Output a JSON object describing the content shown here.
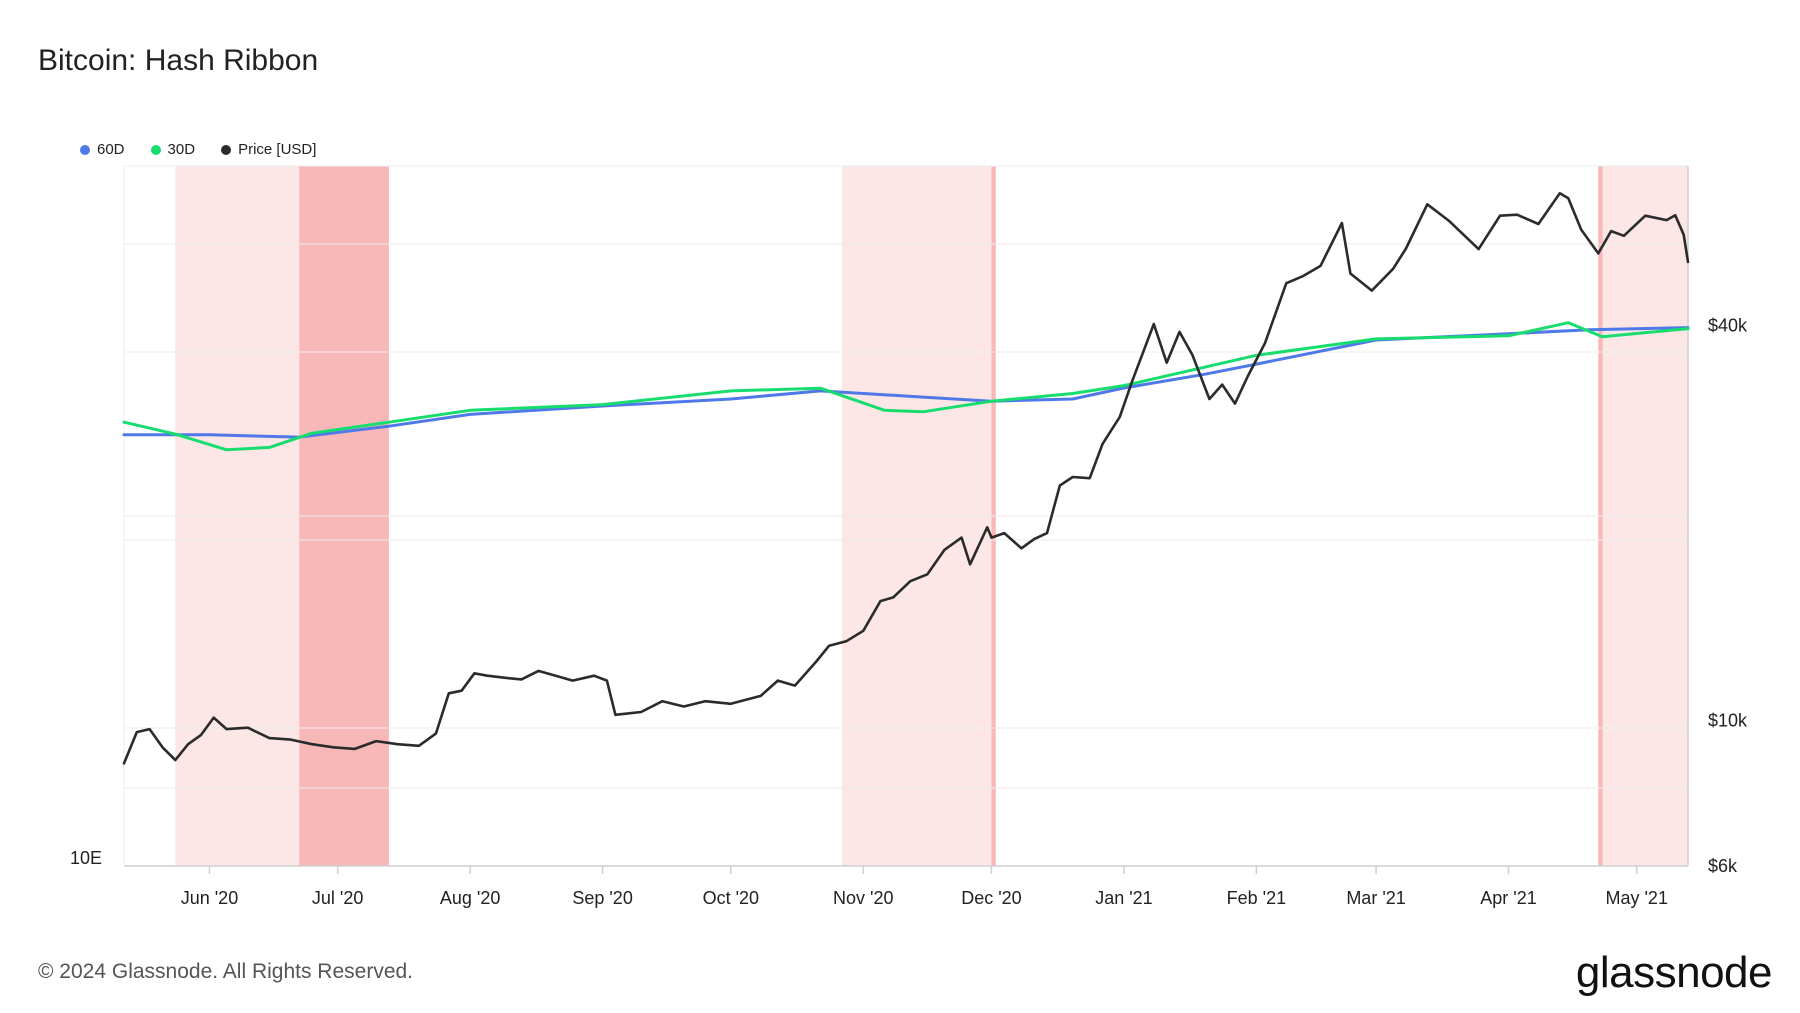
{
  "title": "Bitcoin: Hash Ribbon",
  "footer": "© 2024 Glassnode. All Rights Reserved.",
  "brand": "glassnode",
  "colors": {
    "ma60": "#4f79e8",
    "ma30": "#17dd6f",
    "price": "#2b2b2b",
    "band_light": "#fde6e6",
    "band_dark": "#f8b8b8"
  },
  "chart_data": {
    "type": "line",
    "title": "Bitcoin: Hash Ribbon",
    "x_range": [
      "2020-05-12",
      "2021-05-13"
    ],
    "legend_position": "top-left",
    "legend": [
      {
        "name": "60D",
        "color": "#4f79e8"
      },
      {
        "name": "30D",
        "color": "#17dd6f"
      },
      {
        "name": "Price [USD]",
        "color": "#2b2b2b"
      }
    ],
    "x_ticks": [
      {
        "label": "Jun '20",
        "date": "2020-06-01"
      },
      {
        "label": "Jul '20",
        "date": "2020-07-01"
      },
      {
        "label": "Aug '20",
        "date": "2020-08-01"
      },
      {
        "label": "Sep '20",
        "date": "2020-09-01"
      },
      {
        "label": "Oct '20",
        "date": "2020-10-01"
      },
      {
        "label": "Nov '20",
        "date": "2020-11-01"
      },
      {
        "label": "Dec '20",
        "date": "2020-12-01"
      },
      {
        "label": "Jan '21",
        "date": "2021-01-01"
      },
      {
        "label": "Feb '21",
        "date": "2021-02-01"
      },
      {
        "label": "Mar '21",
        "date": "2021-03-01"
      },
      {
        "label": "Apr '21",
        "date": "2021-04-01"
      },
      {
        "label": "May '21",
        "date": "2021-05-01"
      }
    ],
    "y_left": {
      "label": "",
      "scale": "log",
      "tick_labels": [
        "10E"
      ],
      "range": [
        1e+19,
        2.3e+20
      ]
    },
    "y_right": {
      "label": "",
      "scale": "log",
      "range": [
        6000,
        70000
      ],
      "ticks": [
        {
          "label": "$40k",
          "value": 40000
        },
        {
          "label": "$10k",
          "value": 10000
        },
        {
          "label": "$6k",
          "value": 6000
        }
      ]
    },
    "capitulation_bands": [
      {
        "start": "2020-05-24",
        "end": "2020-06-22",
        "shade": "light"
      },
      {
        "start": "2020-06-22",
        "end": "2020-07-13",
        "shade": "dark"
      },
      {
        "start": "2020-10-27",
        "end": "2020-12-02",
        "shade": "light"
      },
      {
        "start": "2020-12-01",
        "end": "2020-12-02",
        "shade": "dark"
      },
      {
        "start": "2021-04-22",
        "end": "2021-05-13",
        "shade": "light"
      },
      {
        "start": "2021-04-22",
        "end": "2021-04-23",
        "shade": "dark"
      }
    ],
    "series": [
      {
        "name": "60D",
        "axis": "left",
        "x": [
          "2020-05-12",
          "2020-06-01",
          "2020-06-22",
          "2020-07-13",
          "2020-08-01",
          "2020-09-01",
          "2020-10-01",
          "2020-10-22",
          "2020-11-15",
          "2020-12-01",
          "2020-12-20",
          "2021-01-01",
          "2021-01-20",
          "2021-02-01",
          "2021-03-01",
          "2021-04-01",
          "2021-04-20",
          "2021-05-13"
        ],
        "values": [
          6.9e+19,
          6.9e+19,
          6.83e+19,
          7.17e+19,
          7.56e+19,
          7.85e+19,
          8.1e+19,
          8.4e+19,
          8.17e+19,
          8.02e+19,
          8.1e+19,
          8.51e+19,
          9.05e+19,
          9.47e+19,
          1.055e+20,
          1.085e+20,
          1.105e+20,
          1.115e+20
        ]
      },
      {
        "name": "30D",
        "axis": "left",
        "x": [
          "2020-05-12",
          "2020-05-24",
          "2020-06-05",
          "2020-06-15",
          "2020-06-25",
          "2020-07-13",
          "2020-08-01",
          "2020-09-01",
          "2020-10-01",
          "2020-10-22",
          "2020-11-06",
          "2020-11-15",
          "2020-12-01",
          "2020-12-20",
          "2021-01-01",
          "2021-02-01",
          "2021-03-01",
          "2021-04-01",
          "2021-04-15",
          "2021-04-23",
          "2021-05-13"
        ],
        "values": [
          7.3e+19,
          6.92e+19,
          6.45e+19,
          6.52e+19,
          6.95e+19,
          7.3e+19,
          7.7e+19,
          7.9e+19,
          8.4e+19,
          8.5e+19,
          7.7e+19,
          7.65e+19,
          8.02e+19,
          8.3e+19,
          8.6e+19,
          9.85e+19,
          1.06e+20,
          1.075e+20,
          1.14e+20,
          1.07e+20,
          1.11e+20
        ]
      },
      {
        "name": "Price [USD]",
        "axis": "right",
        "x": [
          "2020-05-12",
          "2020-05-15",
          "2020-05-18",
          "2020-05-21",
          "2020-05-24",
          "2020-05-27",
          "2020-05-30",
          "2020-06-02",
          "2020-06-05",
          "2020-06-10",
          "2020-06-15",
          "2020-06-20",
          "2020-06-25",
          "2020-06-30",
          "2020-07-05",
          "2020-07-10",
          "2020-07-15",
          "2020-07-20",
          "2020-07-24",
          "2020-07-27",
          "2020-07-30",
          "2020-08-02",
          "2020-08-05",
          "2020-08-10",
          "2020-08-13",
          "2020-08-17",
          "2020-08-20",
          "2020-08-25",
          "2020-08-30",
          "2020-09-02",
          "2020-09-04",
          "2020-09-10",
          "2020-09-15",
          "2020-09-20",
          "2020-09-25",
          "2020-10-01",
          "2020-10-08",
          "2020-10-12",
          "2020-10-16",
          "2020-10-21",
          "2020-10-24",
          "2020-10-28",
          "2020-11-01",
          "2020-11-05",
          "2020-11-08",
          "2020-11-12",
          "2020-11-16",
          "2020-11-20",
          "2020-11-24",
          "2020-11-26",
          "2020-11-30",
          "2020-12-01",
          "2020-12-04",
          "2020-12-08",
          "2020-12-11",
          "2020-12-14",
          "2020-12-17",
          "2020-12-20",
          "2020-12-24",
          "2020-12-27",
          "2020-12-31",
          "2021-01-03",
          "2021-01-08",
          "2021-01-11",
          "2021-01-14",
          "2021-01-17",
          "2021-01-21",
          "2021-01-24",
          "2021-01-27",
          "2021-01-30",
          "2021-02-03",
          "2021-02-08",
          "2021-02-12",
          "2021-02-16",
          "2021-02-21",
          "2021-02-23",
          "2021-02-28",
          "2021-03-05",
          "2021-03-08",
          "2021-03-13",
          "2021-03-18",
          "2021-03-25",
          "2021-03-30",
          "2021-04-03",
          "2021-04-08",
          "2021-04-13",
          "2021-04-15",
          "2021-04-18",
          "2021-04-22",
          "2021-04-25",
          "2021-04-28",
          "2021-05-03",
          "2021-05-08",
          "2021-05-10",
          "2021-05-12",
          "2021-05-13"
        ],
        "values": [
          8600,
          9600,
          9700,
          9100,
          8700,
          9200,
          9500,
          10100,
          9700,
          9750,
          9400,
          9350,
          9200,
          9100,
          9050,
          9300,
          9200,
          9150,
          9550,
          11000,
          11100,
          11800,
          11700,
          11600,
          11550,
          11900,
          11750,
          11500,
          11700,
          11500,
          10200,
          10300,
          10700,
          10500,
          10700,
          10600,
          10900,
          11500,
          11300,
          12300,
          13000,
          13200,
          13700,
          15200,
          15400,
          16300,
          16700,
          18200,
          19000,
          17300,
          19700,
          19000,
          19300,
          18300,
          18900,
          19300,
          22800,
          23500,
          23400,
          26400,
          29000,
          33000,
          40200,
          35100,
          39100,
          36100,
          30900,
          32500,
          30400,
          33500,
          37600,
          46400,
          47600,
          49300,
          57300,
          48000,
          45200,
          48800,
          52400,
          61200,
          57800,
          52300,
          58800,
          59000,
          57100,
          63600,
          62500,
          56000,
          51500,
          55700,
          54800,
          58800,
          57900,
          58900,
          55000,
          50000
        ]
      }
    ]
  }
}
